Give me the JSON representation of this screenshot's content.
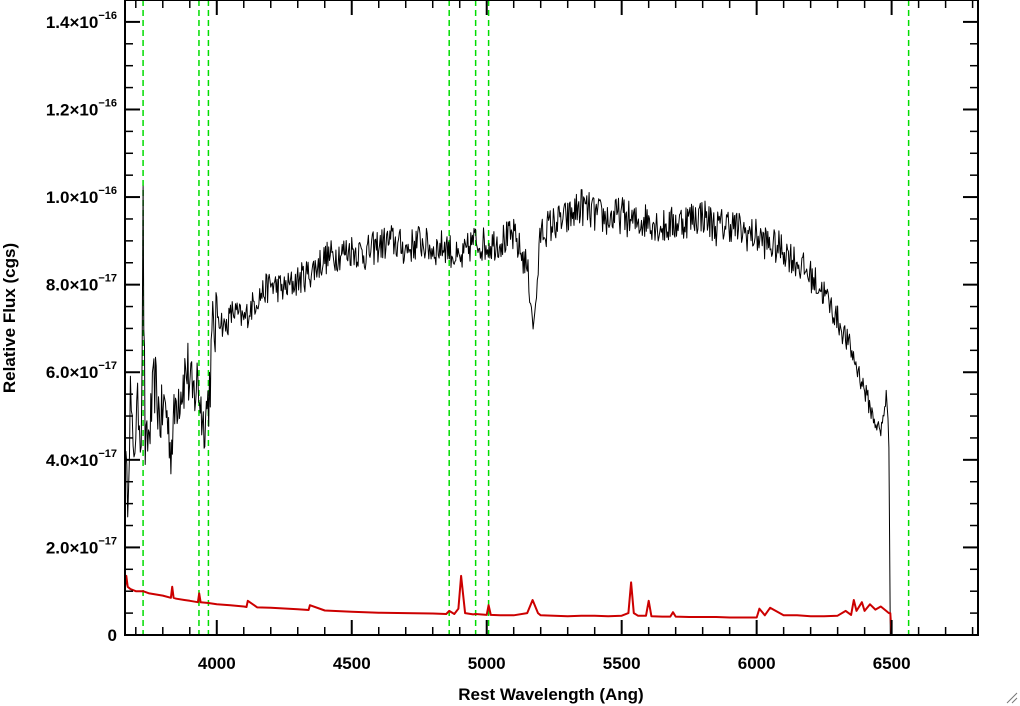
{
  "chart_data": {
    "type": "line",
    "title": "",
    "xlabel": "Rest Wavelength (Ang)",
    "ylabel": "Relative Flux (cgs)",
    "xlim": [
      3660,
      6820
    ],
    "ylim": [
      0,
      1.45e-16
    ],
    "grid": false,
    "x_ticks": [
      {
        "value": 4000,
        "label": "4000"
      },
      {
        "value": 4500,
        "label": "4500"
      },
      {
        "value": 5000,
        "label": "5000"
      },
      {
        "value": 5500,
        "label": "5500"
      },
      {
        "value": 6000,
        "label": "6000"
      },
      {
        "value": 6500,
        "label": "6500"
      }
    ],
    "y_ticks": [
      {
        "value": 0,
        "mant": "0",
        "exp": ""
      },
      {
        "value": 2e-17,
        "mant": "2.0×10",
        "exp": "−17"
      },
      {
        "value": 4e-17,
        "mant": "4.0×10",
        "exp": "−17"
      },
      {
        "value": 6e-17,
        "mant": "6.0×10",
        "exp": "−17"
      },
      {
        "value": 8e-17,
        "mant": "8.0×10",
        "exp": "−17"
      },
      {
        "value": 1e-16,
        "mant": "1.0×10",
        "exp": "−16"
      },
      {
        "value": 1.2e-16,
        "mant": "1.2×10",
        "exp": "−16"
      },
      {
        "value": 1.4e-16,
        "mant": "1.4×10",
        "exp": "−16"
      }
    ],
    "vlines": [
      3727,
      3934,
      3969,
      4861,
      4959,
      5007,
      6563
    ],
    "series": [
      {
        "color": "#000000",
        "x": [
          3660,
          3670,
          3680,
          3690,
          3700,
          3710,
          3720,
          3727,
          3735,
          3750,
          3770,
          3790,
          3810,
          3830,
          3850,
          3870,
          3890,
          3910,
          3930,
          3950,
          3970,
          3985,
          4000,
          4030,
          4060,
          4100,
          4150,
          4200,
          4250,
          4300,
          4350,
          4400,
          4450,
          4500,
          4550,
          4600,
          4650,
          4700,
          4750,
          4800,
          4850,
          4900,
          4950,
          5000,
          5050,
          5100,
          5150,
          5175,
          5200,
          5250,
          5300,
          5350,
          5400,
          5450,
          5500,
          5550,
          5600,
          5650,
          5700,
          5750,
          5800,
          5850,
          5900,
          5950,
          6000,
          6050,
          6100,
          6150,
          6200,
          6250,
          6300,
          6350,
          6400,
          6430,
          6460,
          6480,
          6490,
          6495,
          6500,
          6820
        ],
        "y": [
          4.2e-17,
          3.1e-17,
          5.5e-17,
          4e-17,
          4.8e-17,
          5.2e-17,
          4.6e-17,
          9.3e-17,
          4.2e-17,
          4.6e-17,
          5.8e-17,
          4.9e-17,
          5.3e-17,
          4.2e-17,
          5.4e-17,
          5.7e-17,
          6.1e-17,
          5.4e-17,
          5.8e-17,
          4.8e-17,
          5.4e-17,
          6.8e-17,
          7.4e-17,
          7e-17,
          7.4e-17,
          7.2e-17,
          7.7e-17,
          8e-17,
          7.9e-17,
          8.1e-17,
          8.3e-17,
          8.6e-17,
          8.7e-17,
          8.8e-17,
          8.7e-17,
          8.9e-17,
          9e-17,
          8.8e-17,
          9e-17,
          8.8e-17,
          8.9e-17,
          8.5e-17,
          9e-17,
          8.9e-17,
          9e-17,
          9.1e-17,
          8.4e-17,
          7e-17,
          9.2e-17,
          9.4e-17,
          9.5e-17,
          9.8e-17,
          9.6e-17,
          9.5e-17,
          9.6e-17,
          9.4e-17,
          9.5e-17,
          9.3e-17,
          9.4e-17,
          9.5e-17,
          9.6e-17,
          9.3e-17,
          9.4e-17,
          9.2e-17,
          9.1e-17,
          8.9e-17,
          8.8e-17,
          8.5e-17,
          8.2e-17,
          7.8e-17,
          7.2e-17,
          6.5e-17,
          5.6e-17,
          5e-17,
          4.6e-17,
          5.5e-17,
          4.4e-17,
          0,
          0,
          0
        ]
      },
      {
        "color": "#cc0000",
        "x": [
          3660,
          3665,
          3670,
          3680,
          3700,
          3727,
          3750,
          3800,
          3830,
          3835,
          3840,
          3850,
          3880,
          3900,
          3930,
          3935,
          3940,
          3969,
          4000,
          4050,
          4100,
          4110,
          4115,
          4150,
          4200,
          4300,
          4340,
          4345,
          4400,
          4500,
          4600,
          4700,
          4800,
          4850,
          4861,
          4880,
          4895,
          4905,
          4920,
          4950,
          4959,
          5000,
          5007,
          5015,
          5050,
          5100,
          5150,
          5170,
          5190,
          5200,
          5250,
          5300,
          5350,
          5400,
          5450,
          5500,
          5525,
          5535,
          5545,
          5560,
          5590,
          5600,
          5610,
          5650,
          5680,
          5690,
          5700,
          5750,
          5800,
          5850,
          5900,
          5950,
          6000,
          6010,
          6030,
          6050,
          6100,
          6150,
          6200,
          6250,
          6300,
          6330,
          6350,
          6360,
          6370,
          6390,
          6400,
          6420,
          6440,
          6460,
          6480,
          6490,
          6495,
          6500,
          6820
        ],
        "y": [
          1.1e-17,
          1.35e-17,
          1.1e-17,
          1.05e-17,
          1e-17,
          1e-17,
          9.5e-18,
          9e-18,
          8.5e-18,
          1.1e-17,
          8.5e-18,
          8.3e-18,
          8e-18,
          7.8e-18,
          7.5e-18,
          9.5e-18,
          7.5e-18,
          7.3e-18,
          7e-18,
          6.8e-18,
          6.5e-18,
          6.4e-18,
          7.8e-18,
          6.3e-18,
          6.2e-18,
          5.9e-18,
          5.7e-18,
          6.8e-18,
          5.6e-18,
          5.3e-18,
          5.1e-18,
          5e-18,
          4.9e-18,
          4.8e-18,
          5.5e-18,
          4.8e-18,
          6e-18,
          1.35e-17,
          5e-18,
          4.7e-18,
          4.8e-18,
          4.6e-18,
          6.8e-18,
          4.6e-18,
          4.5e-18,
          4.5e-18,
          5e-18,
          8e-18,
          5e-18,
          4.5e-18,
          4.4e-18,
          4.3e-18,
          4.4e-18,
          4.4e-18,
          4.3e-18,
          4.4e-18,
          5e-18,
          1.2e-17,
          5e-18,
          4.4e-18,
          4.4e-18,
          7.8e-18,
          4.3e-18,
          4.2e-18,
          4.2e-18,
          5.2e-18,
          4.2e-18,
          4.1e-18,
          4.1e-18,
          4.1e-18,
          4e-18,
          4e-18,
          4e-18,
          6e-18,
          4.5e-18,
          6.2e-18,
          4.5e-18,
          4.5e-18,
          4.3e-18,
          4.3e-18,
          4.4e-18,
          5.5e-18,
          4.6e-18,
          8e-18,
          5.5e-18,
          7.5e-18,
          5.5e-18,
          7e-18,
          5.8e-18,
          6.5e-18,
          5.5e-18,
          5e-18,
          5e-18,
          0,
          0
        ]
      }
    ]
  }
}
